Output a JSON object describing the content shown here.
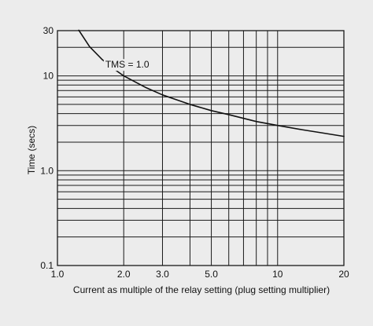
{
  "chart_data": {
    "type": "line",
    "title": "",
    "xlabel": "Current as multiple of the relay setting (plug setting multiplier)",
    "ylabel": "Time (secs)",
    "x_scale": "log",
    "y_scale": "log",
    "xlim": [
      1.0,
      20
    ],
    "ylim": [
      0.1,
      30
    ],
    "grid": true,
    "x_ticks": [
      {
        "value": 1.0,
        "label": "1.0"
      },
      {
        "value": 2.0,
        "label": "2.0"
      },
      {
        "value": 3.0,
        "label": "3.0"
      },
      {
        "value": 5.0,
        "label": "5.0"
      },
      {
        "value": 10,
        "label": "10"
      },
      {
        "value": 20,
        "label": "20"
      }
    ],
    "y_ticks": [
      {
        "value": 0.1,
        "label": "0.1"
      },
      {
        "value": 1.0,
        "label": "1.0"
      },
      {
        "value": 10,
        "label": "10"
      },
      {
        "value": 30,
        "label": "30"
      }
    ],
    "x_grid": [
      1,
      2,
      3,
      4,
      5,
      6,
      7,
      8,
      9,
      10,
      20
    ],
    "y_grid": [
      0.1,
      0.2,
      0.3,
      0.4,
      0.5,
      0.6,
      0.7,
      0.8,
      0.9,
      1,
      2,
      3,
      4,
      5,
      6,
      7,
      8,
      9,
      10,
      20,
      30
    ],
    "series": [
      {
        "name": "TMS = 1.0",
        "x": [
          1.25,
          1.4,
          1.6,
          1.8,
          2.0,
          2.5,
          3.0,
          4.0,
          5.0,
          6.0,
          8.0,
          10,
          13,
          16,
          20
        ],
        "y": [
          30.3,
          20.3,
          14.8,
          11.9,
          10.0,
          7.6,
          6.3,
          5.0,
          4.3,
          3.9,
          3.3,
          3.0,
          2.7,
          2.5,
          2.3
        ]
      }
    ],
    "annotations": [
      {
        "text": "TMS = 1.0",
        "x": 1.65,
        "y": 12.2
      }
    ]
  },
  "colors": {
    "background": "#ececec",
    "grid": "#1a1a1a",
    "curve": "#111111"
  }
}
